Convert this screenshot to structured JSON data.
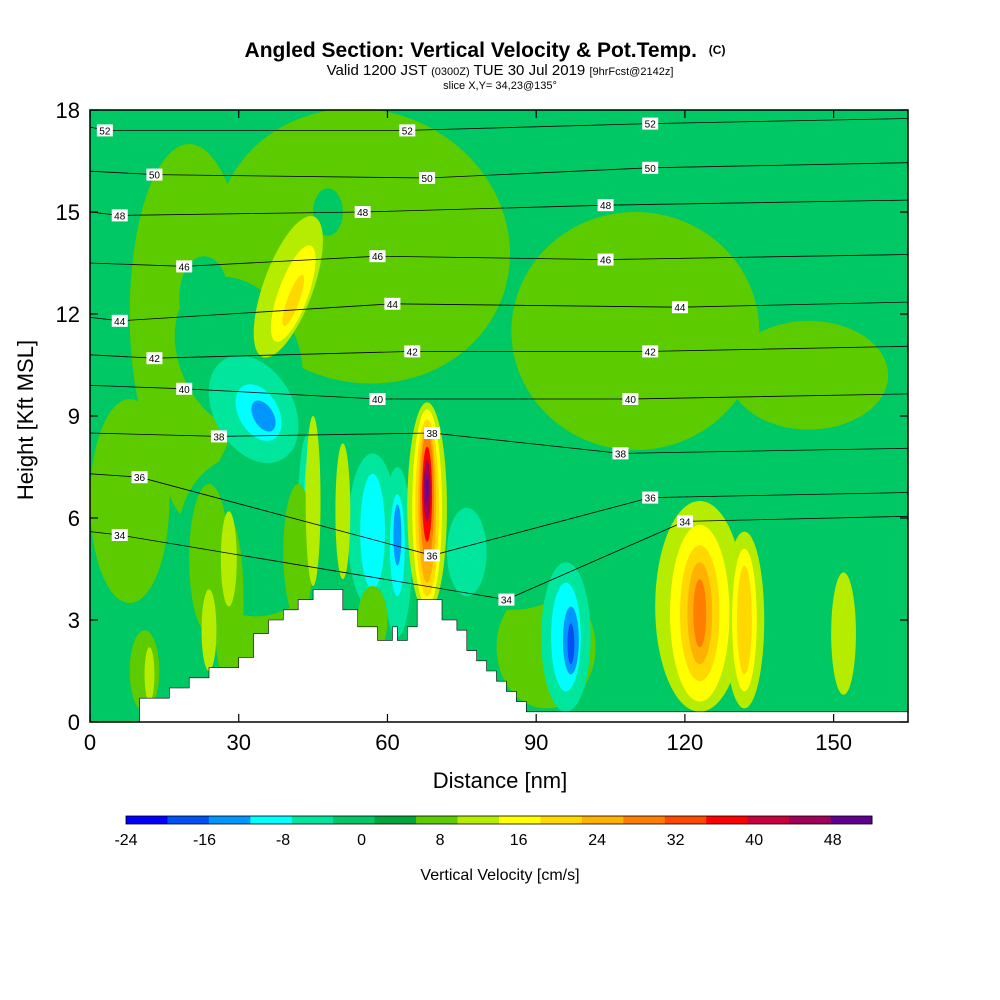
{
  "header": {
    "title_main": "Angled Section: Vertical Velocity & Pot.Temp.",
    "title_copyright": "(C)",
    "sub_valid": "Valid 1200 JST",
    "sub_utc": "(0300Z)",
    "sub_date": "TUE 30 Jul 2019",
    "sub_fcst": "[9hrFcst@2142z]",
    "slice": "slice X,Y= 34,23@135°"
  },
  "chart_data": {
    "type": "heatmap",
    "title": "Angled Section: Vertical Velocity & Pot.Temp.",
    "xlabel": "Distance [nm]",
    "ylabel": "Height [Kft MSL]",
    "xlim": [
      0,
      165
    ],
    "ylim": [
      0,
      18
    ],
    "xticks": [
      "0",
      "30",
      "60",
      "90",
      "120",
      "150"
    ],
    "yticks": [
      "0",
      "3",
      "6",
      "9",
      "12",
      "15",
      "18"
    ],
    "colorbar": {
      "label": "Vertical Velocity [cm/s]",
      "tick_labels": [
        "-24",
        "-16",
        "-8",
        "0",
        "8",
        "16",
        "24",
        "32",
        "40",
        "48"
      ],
      "min": -24,
      "max": 52,
      "step": 4,
      "colors": [
        "#0000ff",
        "#0050f5",
        "#0096ff",
        "#00ffff",
        "#00e69c",
        "#00c864",
        "#00a63c",
        "#5ccc00",
        "#b6ec00",
        "#ffff00",
        "#ffd800",
        "#ffb000",
        "#ff7d00",
        "#ff4800",
        "#ff0000",
        "#c8003c",
        "#a0005a",
        "#600090"
      ]
    },
    "terrain": [
      [
        0,
        0
      ],
      [
        10,
        0
      ],
      [
        10,
        0.7
      ],
      [
        16,
        0.7
      ],
      [
        16,
        1.0
      ],
      [
        20,
        1.0
      ],
      [
        20,
        1.3
      ],
      [
        24,
        1.3
      ],
      [
        24,
        1.6
      ],
      [
        30,
        1.6
      ],
      [
        30,
        1.9
      ],
      [
        33,
        1.9
      ],
      [
        33,
        2.6
      ],
      [
        36,
        2.6
      ],
      [
        36,
        3.0
      ],
      [
        39,
        3.0
      ],
      [
        39,
        3.3
      ],
      [
        42,
        3.3
      ],
      [
        42,
        3.6
      ],
      [
        45,
        3.6
      ],
      [
        45,
        3.9
      ],
      [
        51,
        3.9
      ],
      [
        51,
        3.3
      ],
      [
        54,
        3.3
      ],
      [
        54,
        2.8
      ],
      [
        58,
        2.8
      ],
      [
        58,
        2.4
      ],
      [
        61,
        2.4
      ],
      [
        61,
        2.8
      ],
      [
        62,
        2.8
      ],
      [
        62,
        2.4
      ],
      [
        64,
        2.4
      ],
      [
        64,
        2.8
      ],
      [
        66,
        2.8
      ],
      [
        66,
        3.6
      ],
      [
        71,
        3.6
      ],
      [
        71,
        3.0
      ],
      [
        74,
        3.0
      ],
      [
        74,
        2.7
      ],
      [
        76,
        2.7
      ],
      [
        76,
        2.1
      ],
      [
        78,
        2.1
      ],
      [
        78,
        1.8
      ],
      [
        80,
        1.8
      ],
      [
        80,
        1.5
      ],
      [
        82,
        1.5
      ],
      [
        82,
        1.2
      ],
      [
        84,
        1.2
      ],
      [
        84,
        0.9
      ],
      [
        86,
        0.9
      ],
      [
        86,
        0.6
      ],
      [
        88,
        0.6
      ],
      [
        88,
        0.3
      ],
      [
        165,
        0.3
      ],
      [
        165,
        0
      ]
    ],
    "theta_contours": [
      "34",
      "36",
      "38",
      "40",
      "42",
      "44",
      "46",
      "48",
      "50",
      "52"
    ],
    "theta_labels": [
      {
        "text": "52",
        "x": 3,
        "y": 17.4
      },
      {
        "text": "52",
        "x": 64,
        "y": 17.4
      },
      {
        "text": "52",
        "x": 113,
        "y": 17.6
      },
      {
        "text": "50",
        "x": 13,
        "y": 16.1
      },
      {
        "text": "50",
        "x": 68,
        "y": 16.0
      },
      {
        "text": "50",
        "x": 113,
        "y": 16.3
      },
      {
        "text": "48",
        "x": 6,
        "y": 14.9
      },
      {
        "text": "48",
        "x": 55,
        "y": 15.0
      },
      {
        "text": "48",
        "x": 104,
        "y": 15.2
      },
      {
        "text": "46",
        "x": 19,
        "y": 13.4
      },
      {
        "text": "46",
        "x": 58,
        "y": 13.7
      },
      {
        "text": "46",
        "x": 104,
        "y": 13.6
      },
      {
        "text": "44",
        "x": 6,
        "y": 11.8
      },
      {
        "text": "44",
        "x": 61,
        "y": 12.3
      },
      {
        "text": "44",
        "x": 119,
        "y": 12.2
      },
      {
        "text": "42",
        "x": 13,
        "y": 10.7
      },
      {
        "text": "42",
        "x": 65,
        "y": 10.9
      },
      {
        "text": "42",
        "x": 113,
        "y": 10.9
      },
      {
        "text": "40",
        "x": 19,
        "y": 9.8
      },
      {
        "text": "40",
        "x": 58,
        "y": 9.5
      },
      {
        "text": "40",
        "x": 109,
        "y": 9.5
      },
      {
        "text": "38",
        "x": 26,
        "y": 8.4
      },
      {
        "text": "38",
        "x": 69,
        "y": 8.5
      },
      {
        "text": "38",
        "x": 107,
        "y": 7.9
      },
      {
        "text": "36",
        "x": 10,
        "y": 7.2
      },
      {
        "text": "36",
        "x": 69,
        "y": 4.9
      },
      {
        "text": "36",
        "x": 113,
        "y": 6.6
      },
      {
        "text": "34",
        "x": 6,
        "y": 5.5
      },
      {
        "text": "34",
        "x": 84,
        "y": 3.6
      },
      {
        "text": "34",
        "x": 120,
        "y": 5.9
      }
    ],
    "blobs": [
      {
        "w": 4,
        "x": 55,
        "y": 14,
        "rx": 30,
        "ry": 4,
        "rot": 20
      },
      {
        "w": 4,
        "x": 20,
        "y": 12,
        "rx": 12,
        "ry": 5,
        "rot": 0
      },
      {
        "w": 4,
        "x": 20,
        "y": 11,
        "rx": 8,
        "ry": 5,
        "rot": 0
      },
      {
        "w": 4,
        "x": 145,
        "y": 10.2,
        "rx": 16,
        "ry": 1.6,
        "rot": 0
      },
      {
        "w": 4,
        "x": 110,
        "y": 11.5,
        "rx": 25,
        "ry": 3.5,
        "rot": 0
      },
      {
        "w": 4,
        "x": 8,
        "y": 6.5,
        "rx": 8,
        "ry": 3,
        "rot": 0
      },
      {
        "w": 4,
        "x": 92,
        "y": 2.2,
        "rx": 10,
        "ry": 1.8,
        "rot": 0
      },
      {
        "w": 4,
        "x": 35,
        "y": 3.5,
        "rx": 7,
        "ry": 2.4,
        "rot": 0
      },
      {
        "w": -4,
        "x": 30,
        "y": 10.8,
        "rx": 12,
        "ry": 2.4,
        "rot": -25
      },
      {
        "w": -4,
        "x": 23,
        "y": 12.5,
        "rx": 5,
        "ry": 1.2,
        "rot": 0
      },
      {
        "w": -4,
        "x": 48,
        "y": 15,
        "rx": 3,
        "ry": 0.7,
        "rot": 0
      },
      {
        "w": -4,
        "x": 64,
        "y": 5.5,
        "rx": 14,
        "ry": 2.6,
        "rot": 0
      },
      {
        "w": -4,
        "x": 85,
        "y": 5.0,
        "rx": 15,
        "ry": 1.7,
        "rot": 0
      },
      {
        "w": -4,
        "x": 33,
        "y": 5.5,
        "rx": 15,
        "ry": 2.4,
        "rot": -10
      },
      {
        "w": -4,
        "x": 143,
        "y": 2.5,
        "rx": 16,
        "ry": 2.2,
        "rot": 0
      },
      {
        "w": -4,
        "x": 112,
        "y": 3.5,
        "rx": 7,
        "ry": 3.5,
        "rot": 0
      },
      {
        "w": -8,
        "x": 33,
        "y": 9.2,
        "rx": 8,
        "ry": 1.7,
        "rot": -30
      },
      {
        "w": -8,
        "x": 57,
        "y": 5.6,
        "rx": 5,
        "ry": 2.3,
        "rot": 0
      },
      {
        "w": -8,
        "x": 44,
        "y": 6.3,
        "rx": 2,
        "ry": 2.2,
        "rot": 0
      },
      {
        "w": -8,
        "x": 62,
        "y": 5.0,
        "rx": 3,
        "ry": 2.5,
        "rot": 0
      },
      {
        "w": -8,
        "x": 76,
        "y": 5.0,
        "rx": 4,
        "ry": 1.3,
        "rot": 0
      },
      {
        "w": -8,
        "x": 96,
        "y": 2.5,
        "rx": 5,
        "ry": 2.2,
        "rot": 0
      },
      {
        "w": -12,
        "x": 34,
        "y": 9.1,
        "rx": 4,
        "ry": 0.9,
        "rot": -30
      },
      {
        "w": -12,
        "x": 57,
        "y": 5.6,
        "rx": 2.5,
        "ry": 1.7,
        "rot": 0
      },
      {
        "w": -12,
        "x": 62,
        "y": 5.2,
        "rx": 1.5,
        "ry": 1.5,
        "rot": 0
      },
      {
        "w": -12,
        "x": 44,
        "y": 6.5,
        "rx": 0.8,
        "ry": 1.3,
        "rot": 0
      },
      {
        "w": -12,
        "x": 96,
        "y": 2.5,
        "rx": 3,
        "ry": 1.6,
        "rot": 0
      },
      {
        "w": -16,
        "x": 35,
        "y": 9.0,
        "rx": 2,
        "ry": 0.5,
        "rot": -30
      },
      {
        "w": -16,
        "x": 62,
        "y": 5.5,
        "rx": 0.8,
        "ry": 0.9,
        "rot": 0
      },
      {
        "w": -16,
        "x": 97,
        "y": 2.4,
        "rx": 1.6,
        "ry": 1.0,
        "rot": 0
      },
      {
        "w": -20,
        "x": 97,
        "y": 2.3,
        "rx": 0.7,
        "ry": 0.6,
        "rot": 0
      },
      {
        "w": 4,
        "x": 24,
        "y": 4.8,
        "rx": 4,
        "ry": 2.2,
        "rot": 0
      },
      {
        "w": 4,
        "x": 28,
        "y": 3.5,
        "rx": 3,
        "ry": 2.5,
        "rot": 0
      },
      {
        "w": 4,
        "x": 42,
        "y": 5.0,
        "rx": 3,
        "ry": 2,
        "rot": 0
      },
      {
        "w": 4,
        "x": 11,
        "y": 1.5,
        "rx": 3,
        "ry": 1.2,
        "rot": 0
      },
      {
        "w": 4,
        "x": 57,
        "y": 3.0,
        "rx": 3,
        "ry": 1.0,
        "rot": 0
      },
      {
        "w": 8,
        "x": 40,
        "y": 12.8,
        "rx": 5,
        "ry": 2.2,
        "rot": 20
      },
      {
        "w": 8,
        "x": 28,
        "y": 4.8,
        "rx": 1.6,
        "ry": 1.4,
        "rot": 0
      },
      {
        "w": 8,
        "x": 24,
        "y": 2.7,
        "rx": 1.5,
        "ry": 1.2,
        "rot": 0
      },
      {
        "w": 8,
        "x": 12,
        "y": 1.4,
        "rx": 1.0,
        "ry": 0.8,
        "rot": 0
      },
      {
        "w": 8,
        "x": 45,
        "y": 6.5,
        "rx": 1.5,
        "ry": 2.5,
        "rot": 0
      },
      {
        "w": 8,
        "x": 51,
        "y": 6.2,
        "rx": 1.5,
        "ry": 2,
        "rot": 0
      },
      {
        "w": 8,
        "x": 123,
        "y": 3.4,
        "rx": 9,
        "ry": 3.1,
        "rot": 0
      },
      {
        "w": 8,
        "x": 132,
        "y": 3.0,
        "rx": 4,
        "ry": 2.6,
        "rot": 0
      },
      {
        "w": 8,
        "x": 152,
        "y": 2.6,
        "rx": 2.5,
        "ry": 1.8,
        "rot": 0
      },
      {
        "w": 8,
        "x": 68,
        "y": 6.3,
        "rx": 4,
        "ry": 3.1,
        "rot": 0
      },
      {
        "w": 12,
        "x": 41,
        "y": 12.6,
        "rx": 3,
        "ry": 1.5,
        "rot": 20
      },
      {
        "w": 12,
        "x": 123,
        "y": 3.2,
        "rx": 6,
        "ry": 2.6,
        "rot": 0
      },
      {
        "w": 12,
        "x": 132,
        "y": 3.0,
        "rx": 2.5,
        "ry": 2.1,
        "rot": 0
      },
      {
        "w": 12,
        "x": 68,
        "y": 6.3,
        "rx": 3,
        "ry": 2.9,
        "rot": 0
      },
      {
        "w": 16,
        "x": 41,
        "y": 12.4,
        "rx": 1.2,
        "ry": 0.8,
        "rot": 20
      },
      {
        "w": 16,
        "x": 123,
        "y": 3.2,
        "rx": 4,
        "ry": 2.0,
        "rot": 0
      },
      {
        "w": 16,
        "x": 132,
        "y": 3.0,
        "rx": 1.5,
        "ry": 1.6,
        "rot": 0
      },
      {
        "w": 16,
        "x": 68,
        "y": 6.3,
        "rx": 2.4,
        "ry": 2.6,
        "rot": 0
      },
      {
        "w": 20,
        "x": 123,
        "y": 3.2,
        "rx": 2.5,
        "ry": 1.5,
        "rot": 0
      },
      {
        "w": 20,
        "x": 68,
        "y": 6.4,
        "rx": 1.8,
        "ry": 2.3,
        "rot": 0
      },
      {
        "w": 24,
        "x": 123,
        "y": 3.2,
        "rx": 1.3,
        "ry": 1.0,
        "rot": 0
      },
      {
        "w": 24,
        "x": 68,
        "y": 6.6,
        "rx": 1.4,
        "ry": 1.9,
        "rot": 0
      },
      {
        "w": 32,
        "x": 68,
        "y": 6.7,
        "rx": 1.0,
        "ry": 1.4,
        "rot": 0
      },
      {
        "w": 40,
        "x": 68,
        "y": 6.8,
        "rx": 0.7,
        "ry": 0.9,
        "rot": 0
      },
      {
        "w": 48,
        "x": 68,
        "y": 6.9,
        "rx": 0.3,
        "ry": 0.4,
        "rot": 0
      }
    ]
  }
}
